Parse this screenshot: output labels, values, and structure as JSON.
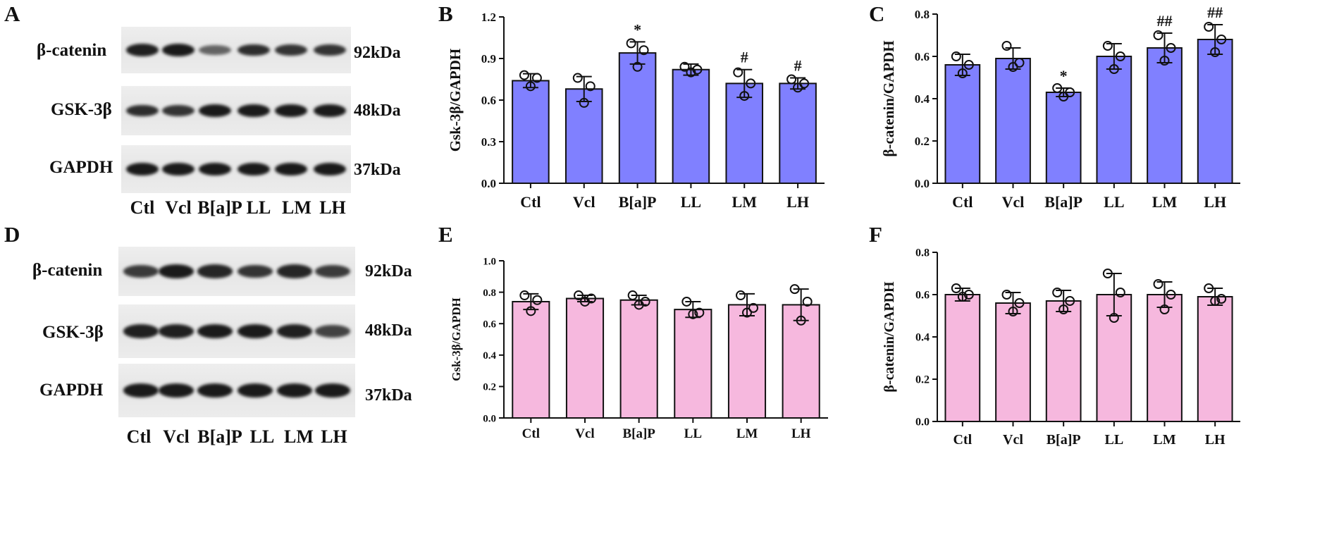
{
  "figure": {
    "panel_letters": [
      "A",
      "B",
      "C",
      "D",
      "E",
      "F"
    ],
    "colors": {
      "blue_bar": "#8080ff",
      "pink_bar": "#f6b8de",
      "ink": "#111111"
    }
  },
  "blots": [
    {
      "letter": "A",
      "rows": [
        {
          "protein": "β-catenin",
          "size": "92kDa",
          "intensity": [
            0.95,
            1.0,
            0.45,
            0.85,
            0.8,
            0.8
          ]
        },
        {
          "protein": "GSK-3β",
          "size": "48kDa",
          "intensity": [
            0.85,
            0.8,
            1.0,
            1.0,
            1.0,
            1.0
          ]
        },
        {
          "protein": "GAPDH",
          "size": "37kDa",
          "intensity": [
            1.0,
            1.0,
            1.0,
            1.0,
            1.0,
            1.0
          ]
        }
      ],
      "lanes": [
        "Ctl",
        "Vcl",
        "B[a]P",
        "LL",
        "LM",
        "LH"
      ]
    },
    {
      "letter": "D",
      "rows": [
        {
          "protein": "β-catenin",
          "size": "92kDa",
          "intensity": [
            0.75,
            1.0,
            0.9,
            0.8,
            0.9,
            0.75
          ]
        },
        {
          "protein": "GSK-3β",
          "size": "48kDa",
          "intensity": [
            0.95,
            0.95,
            1.0,
            1.0,
            0.95,
            0.7
          ]
        },
        {
          "protein": "GAPDH",
          "size": "37kDa",
          "intensity": [
            1.0,
            1.0,
            1.0,
            1.0,
            1.0,
            1.0
          ]
        }
      ],
      "lanes": [
        "Ctl",
        "Vcl",
        "B[a]P",
        "LL",
        "LM",
        "LH"
      ]
    }
  ],
  "chart_data": [
    {
      "letter": "B",
      "type": "bar",
      "ylabel": "Gsk-3β/GAPDH",
      "ylim": [
        0,
        1.2
      ],
      "yticks": [
        "0.0",
        "0.3",
        "0.6",
        "0.9",
        "1.2"
      ],
      "categories": [
        "Ctl",
        "Vcl",
        "B[a]P",
        "LL",
        "LM",
        "LH"
      ],
      "values": [
        0.74,
        0.68,
        0.94,
        0.82,
        0.72,
        0.72
      ],
      "errors": [
        0.05,
        0.09,
        0.08,
        0.04,
        0.1,
        0.04
      ],
      "points": [
        [
          0.7,
          0.76,
          0.78
        ],
        [
          0.58,
          0.7,
          0.76
        ],
        [
          0.84,
          0.96,
          1.01
        ],
        [
          0.8,
          0.82,
          0.84
        ],
        [
          0.63,
          0.72,
          0.8
        ],
        [
          0.69,
          0.72,
          0.75
        ]
      ],
      "annotations": [
        "",
        "",
        "*",
        "",
        "#",
        "#"
      ],
      "color": "#8080ff"
    },
    {
      "letter": "C",
      "type": "bar",
      "ylabel": "β-catenin/GAPDH",
      "ylim": [
        0,
        0.8
      ],
      "yticks": [
        "0.0",
        "0.2",
        "0.4",
        "0.6",
        "0.8"
      ],
      "categories": [
        "Ctl",
        "Vcl",
        "B[a]P",
        "LL",
        "LM",
        "LH"
      ],
      "values": [
        0.56,
        0.59,
        0.43,
        0.6,
        0.64,
        0.68
      ],
      "errors": [
        0.05,
        0.05,
        0.02,
        0.06,
        0.07,
        0.07
      ],
      "points": [
        [
          0.52,
          0.56,
          0.6
        ],
        [
          0.55,
          0.57,
          0.65
        ],
        [
          0.41,
          0.43,
          0.45
        ],
        [
          0.54,
          0.6,
          0.65
        ],
        [
          0.58,
          0.64,
          0.7
        ],
        [
          0.62,
          0.68,
          0.74
        ]
      ],
      "annotations": [
        "",
        "",
        "*",
        "",
        "##",
        "##"
      ],
      "color": "#8080ff"
    },
    {
      "letter": "E",
      "type": "bar",
      "ylabel": "Gsk-3β/GAPDH",
      "ylim": [
        0,
        1.0
      ],
      "yticks": [
        "0.0",
        "0.2",
        "0.4",
        "0.6",
        "0.8",
        "1.0"
      ],
      "categories": [
        "Ctl",
        "Vcl",
        "B[a]P",
        "LL",
        "LM",
        "LH"
      ],
      "values": [
        0.74,
        0.76,
        0.75,
        0.69,
        0.72,
        0.72
      ],
      "errors": [
        0.05,
        0.02,
        0.03,
        0.05,
        0.07,
        0.1
      ],
      "points": [
        [
          0.68,
          0.75,
          0.78
        ],
        [
          0.74,
          0.76,
          0.78
        ],
        [
          0.72,
          0.74,
          0.78
        ],
        [
          0.66,
          0.67,
          0.74
        ],
        [
          0.67,
          0.7,
          0.78
        ],
        [
          0.62,
          0.74,
          0.82
        ]
      ],
      "annotations": [
        "",
        "",
        "",
        "",
        "",
        ""
      ],
      "color": "#f6b8de"
    },
    {
      "letter": "F",
      "type": "bar",
      "ylabel": "β-catenin/GAPDH",
      "ylim": [
        0,
        0.8
      ],
      "yticks": [
        "0.0",
        "0.2",
        "0.4",
        "0.6",
        "0.8"
      ],
      "categories": [
        "Ctl",
        "Vcl",
        "B[a]P",
        "LL",
        "LM",
        "LH"
      ],
      "values": [
        0.6,
        0.56,
        0.57,
        0.6,
        0.6,
        0.59
      ],
      "errors": [
        0.03,
        0.05,
        0.05,
        0.1,
        0.06,
        0.04
      ],
      "points": [
        [
          0.59,
          0.6,
          0.63
        ],
        [
          0.52,
          0.56,
          0.6
        ],
        [
          0.53,
          0.57,
          0.61
        ],
        [
          0.49,
          0.61,
          0.7
        ],
        [
          0.53,
          0.6,
          0.65
        ],
        [
          0.57,
          0.58,
          0.63
        ]
      ],
      "annotations": [
        "",
        "",
        "",
        "",
        "",
        ""
      ],
      "color": "#f6b8de"
    }
  ]
}
